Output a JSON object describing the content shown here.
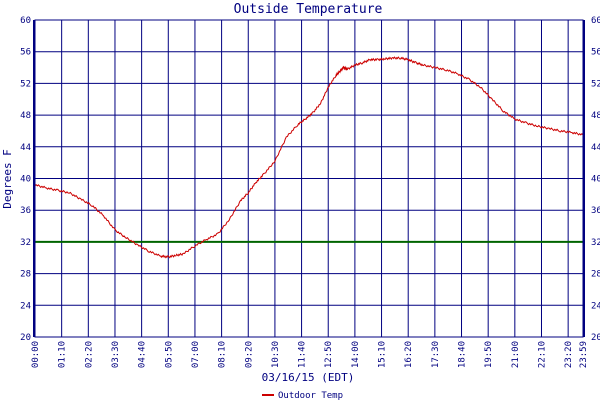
{
  "chart_data": {
    "type": "line",
    "title": "Outside Temperature",
    "xlabel": "03/16/15 (EDT)",
    "ylabel": "Degrees F",
    "ylim": [
      20,
      60
    ],
    "yticks": [
      20,
      24,
      28,
      32,
      36,
      40,
      44,
      48,
      52,
      56,
      60
    ],
    "x_tick_labels": [
      "00:00",
      "01:10",
      "02:20",
      "03:30",
      "04:40",
      "05:50",
      "07:00",
      "08:10",
      "09:20",
      "10:30",
      "11:40",
      "12:50",
      "14:00",
      "15:10",
      "16:20",
      "17:30",
      "18:40",
      "19:50",
      "21:00",
      "22:10",
      "23:20",
      "23:59"
    ],
    "x_tick_minutes": [
      0,
      70,
      140,
      210,
      280,
      350,
      420,
      490,
      560,
      630,
      700,
      770,
      840,
      910,
      980,
      1050,
      1120,
      1190,
      1260,
      1330,
      1400,
      1439
    ],
    "xlim_minutes": [
      0,
      1439
    ],
    "reference_line": {
      "value": 32,
      "color": "#006400"
    },
    "grid": true,
    "legend_position": "bottom-center",
    "colors": {
      "axis": "#000080",
      "grid": "#000080",
      "series": "#cc0000"
    },
    "series": [
      {
        "name": "Outdoor Temp",
        "x_minutes": [
          0,
          30,
          60,
          90,
          120,
          150,
          180,
          210,
          240,
          270,
          300,
          330,
          350,
          370,
          390,
          420,
          450,
          480,
          510,
          540,
          560,
          580,
          600,
          630,
          660,
          690,
          710,
          730,
          750,
          770,
          790,
          800,
          810,
          820,
          840,
          860,
          880,
          900,
          920,
          940,
          960,
          980,
          1000,
          1020,
          1050,
          1080,
          1110,
          1140,
          1170,
          1200,
          1230,
          1260,
          1290,
          1320,
          1350,
          1380,
          1410,
          1439
        ],
        "values": [
          39.2,
          38.8,
          38.5,
          38.2,
          37.4,
          36.6,
          35.3,
          33.5,
          32.5,
          31.6,
          30.8,
          30.2,
          30.1,
          30.3,
          30.5,
          31.5,
          32.3,
          33.0,
          34.8,
          37.2,
          38.2,
          39.5,
          40.5,
          42.2,
          45.2,
          46.8,
          47.5,
          48.3,
          49.5,
          51.5,
          53.0,
          53.5,
          54.0,
          53.8,
          54.3,
          54.6,
          55.0,
          55.0,
          55.1,
          55.2,
          55.2,
          55.0,
          54.6,
          54.3,
          54.0,
          53.7,
          53.2,
          52.5,
          51.5,
          50.0,
          48.5,
          47.5,
          47.0,
          46.6,
          46.3,
          46.0,
          45.8,
          45.5
        ]
      }
    ]
  }
}
